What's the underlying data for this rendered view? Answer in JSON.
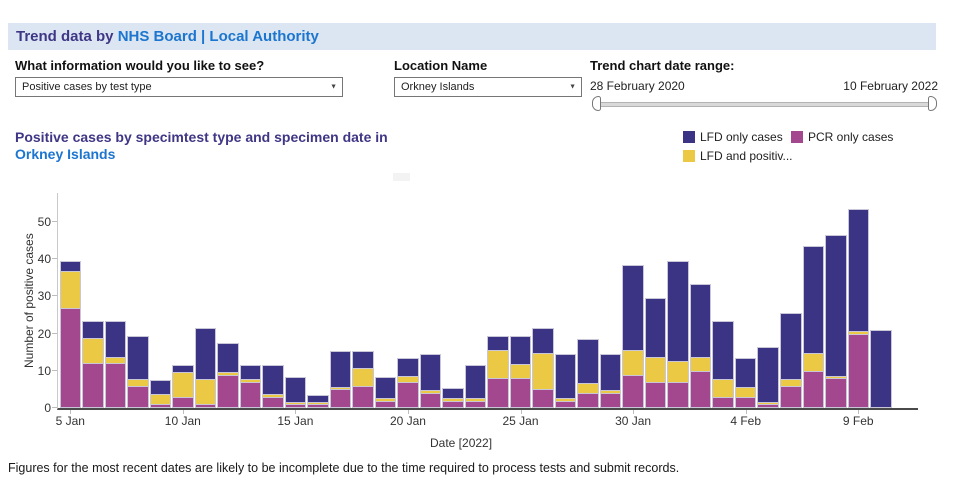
{
  "header": {
    "title_prefix": "Trend data by ",
    "title_link": "NHS Board | Local Authority"
  },
  "controls": {
    "info_label": "What information would you like to see?",
    "info_value": "Positive cases by test type",
    "location_label": "Location Name",
    "location_value": "Orkney Islands",
    "range_label": "Trend chart date range:",
    "range_start": "28 February 2020",
    "range_end": "10 February 2022"
  },
  "icons": {
    "dropdown_arrow": "▼"
  },
  "chart": {
    "title_line1": "Positive cases by specimtest type and specimen date in",
    "title_line2": "Orkney Islands",
    "footnote": "Figures for the most recent dates are likely to be incomplete due to the time required to process tests and submit records."
  },
  "chart_data": {
    "type": "bar",
    "stacked": true,
    "title": "Positive cases by specimtest type and specimen date in Orkney Islands",
    "xlabel": "Date [2022]",
    "ylabel": "Number of positive cases",
    "ylim": [
      0,
      57
    ],
    "yticks": [
      0,
      10,
      20,
      30,
      40,
      50
    ],
    "grid": false,
    "legend_position": "top-right",
    "categories": [
      "5 Jan",
      "6 Jan",
      "7 Jan",
      "8 Jan",
      "9 Jan",
      "10 Jan",
      "11 Jan",
      "12 Jan",
      "13 Jan",
      "14 Jan",
      "15 Jan",
      "16 Jan",
      "17 Jan",
      "18 Jan",
      "19 Jan",
      "20 Jan",
      "21 Jan",
      "22 Jan",
      "23 Jan",
      "24 Jan",
      "25 Jan",
      "26 Jan",
      "27 Jan",
      "28 Jan",
      "29 Jan",
      "30 Jan",
      "31 Jan",
      "1 Feb",
      "2 Feb",
      "3 Feb",
      "4 Feb",
      "5 Feb",
      "6 Feb",
      "7 Feb",
      "8 Feb",
      "9 Feb",
      "10 Feb"
    ],
    "xtick_indices": [
      0,
      5,
      10,
      15,
      20,
      25,
      30,
      35
    ],
    "xticklabels": [
      "5 Jan",
      "10 Jan",
      "15 Jan",
      "20 Jan",
      "25 Jan",
      "30 Jan",
      "4 Feb",
      "9 Feb"
    ],
    "series": [
      {
        "name": "PCR only cases",
        "color": "#a3478f",
        "values": [
          27,
          12,
          12,
          6,
          1,
          3,
          1,
          9,
          7,
          3,
          1,
          1,
          5,
          6,
          2,
          7,
          4,
          2,
          2,
          8,
          8,
          5,
          2,
          4,
          4,
          9,
          7,
          7,
          10,
          3,
          3,
          1,
          6,
          10,
          8,
          20,
          0
        ]
      },
      {
        "name": "LFD and positiv...",
        "color": "#ebc944",
        "values": [
          10,
          7,
          2,
          2,
          3,
          7,
          7,
          1,
          1,
          1,
          1,
          1,
          1,
          5,
          1,
          2,
          1,
          1,
          1,
          8,
          4,
          10,
          1,
          3,
          1,
          7,
          7,
          6,
          4,
          5,
          3,
          1,
          2,
          5,
          1,
          1,
          0
        ]
      },
      {
        "name": "LFD only cases",
        "color": "#3b3383",
        "values": [
          3,
          5,
          10,
          12,
          4,
          2,
          14,
          8,
          4,
          8,
          7,
          2,
          10,
          5,
          6,
          5,
          10,
          3,
          9,
          4,
          8,
          7,
          12,
          12,
          10,
          23,
          16,
          27,
          20,
          16,
          8,
          15,
          18,
          29,
          38,
          33,
          21
        ]
      }
    ],
    "legend": [
      {
        "label": "LFD only cases",
        "color": "#3b3383"
      },
      {
        "label": "PCR only cases",
        "color": "#a3478f"
      },
      {
        "label": "LFD and positiv...",
        "color": "#ebc944"
      }
    ]
  }
}
